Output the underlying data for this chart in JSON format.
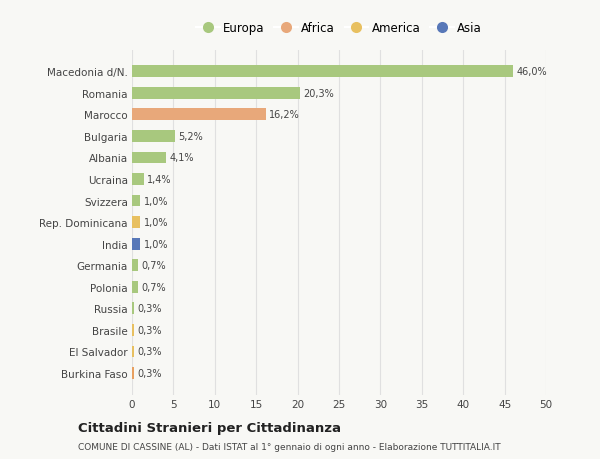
{
  "categories": [
    "Burkina Faso",
    "El Salvador",
    "Brasile",
    "Russia",
    "Polonia",
    "Germania",
    "India",
    "Rep. Dominicana",
    "Svizzera",
    "Ucraina",
    "Albania",
    "Bulgaria",
    "Marocco",
    "Romania",
    "Macedonia d/N."
  ],
  "values": [
    0.3,
    0.3,
    0.3,
    0.3,
    0.7,
    0.7,
    1.0,
    1.0,
    1.0,
    1.4,
    4.1,
    5.2,
    16.2,
    20.3,
    46.0
  ],
  "labels": [
    "0,3%",
    "0,3%",
    "0,3%",
    "0,3%",
    "0,7%",
    "0,7%",
    "1,0%",
    "1,0%",
    "1,0%",
    "1,4%",
    "4,1%",
    "5,2%",
    "16,2%",
    "20,3%",
    "46,0%"
  ],
  "colors": [
    "#e8a060",
    "#e8c060",
    "#e8c060",
    "#a8c87e",
    "#a8c87e",
    "#a8c87e",
    "#5878b8",
    "#e8c060",
    "#a8c87e",
    "#a8c87e",
    "#a8c87e",
    "#a8c87e",
    "#e8a87a",
    "#a8c87e",
    "#a8c87e"
  ],
  "legend_labels": [
    "Europa",
    "Africa",
    "America",
    "Asia"
  ],
  "legend_colors": [
    "#a8c87e",
    "#e8a87a",
    "#e8c060",
    "#5878b8"
  ],
  "title": "Cittadini Stranieri per Cittadinanza",
  "subtitle": "COMUNE DI CASSINE (AL) - Dati ISTAT al 1° gennaio di ogni anno - Elaborazione TUTTITALIA.IT",
  "xlim": [
    0,
    50
  ],
  "xticks": [
    0,
    5,
    10,
    15,
    20,
    25,
    30,
    35,
    40,
    45,
    50
  ],
  "bg_color": "#f8f8f5",
  "grid_color": "#e0e0e0",
  "text_color": "#444444"
}
